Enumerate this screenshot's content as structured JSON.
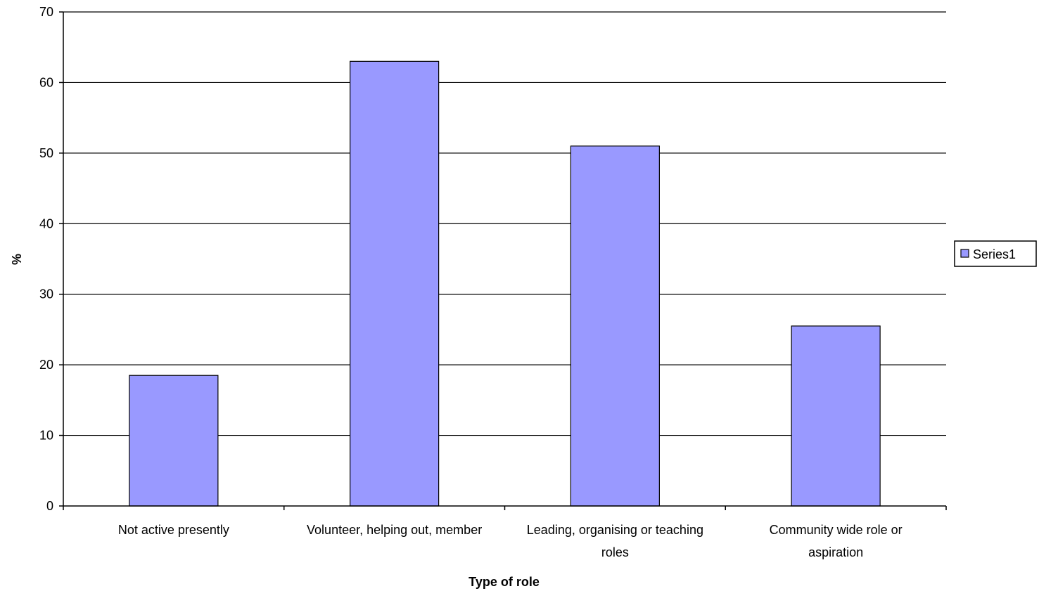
{
  "chart_data": {
    "type": "bar",
    "title": "",
    "xlabel": "Type of role",
    "ylabel": "%",
    "ylim": [
      0,
      70
    ],
    "yticks": [
      0,
      10,
      20,
      30,
      40,
      50,
      60,
      70
    ],
    "grid": true,
    "legend_position": "right",
    "categories": [
      [
        "Not active presently"
      ],
      [
        "Volunteer, helping out, member"
      ],
      [
        "Leading, organising or teaching",
        "roles"
      ],
      [
        "Community wide role or",
        "aspiration"
      ]
    ],
    "series": [
      {
        "name": "Series1",
        "color": "#9999ff",
        "values": [
          18.5,
          63,
          51,
          25.5
        ]
      }
    ]
  }
}
